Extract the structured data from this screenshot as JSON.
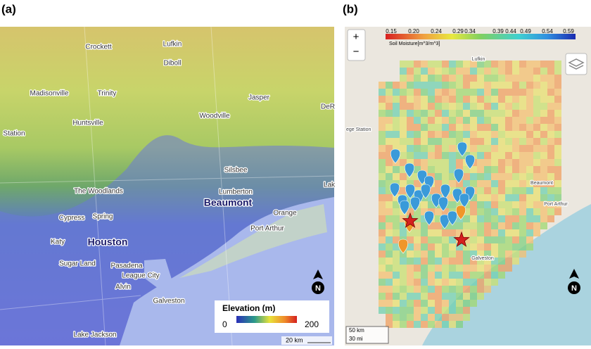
{
  "panels": [
    {
      "label": "(a)",
      "places": [
        "Crockett",
        "Lufkin",
        "Diboll",
        "Madisonville",
        "Trinity",
        "Jasper",
        "DeR",
        "Huntsville",
        "Woodville",
        "Station",
        "Silsbee",
        "The Woodlands",
        "Lumberton",
        "Lak",
        "Beaumont",
        "Orange",
        "Port Arthur",
        "Cypress",
        "Spring",
        "Katy",
        "Houston",
        "Sugar Land",
        "Pasadena",
        "League City",
        "Alvin",
        "Galveston",
        "Lake Jackson"
      ],
      "legend": {
        "title": "Elevation (m)",
        "min_label": "0",
        "max_label": "200"
      },
      "scale": "20 km",
      "north": "N"
    },
    {
      "label": "(b)",
      "zoom_in": "+",
      "zoom_out": "−",
      "colorbar": {
        "ticks": [
          "0.15",
          "0.20",
          "0.24",
          "0.29",
          "0.34",
          "0.39",
          "0.44",
          "0.49",
          "0.54",
          "0.59"
        ],
        "title": "Soil Moisture[m^3/m^3]"
      },
      "places": [
        "Lufkin",
        "ege Station",
        "Beaumont",
        "Port Arthur",
        "Galveston"
      ],
      "scale": [
        "50 km",
        "30 mi"
      ],
      "north": "N"
    }
  ]
}
